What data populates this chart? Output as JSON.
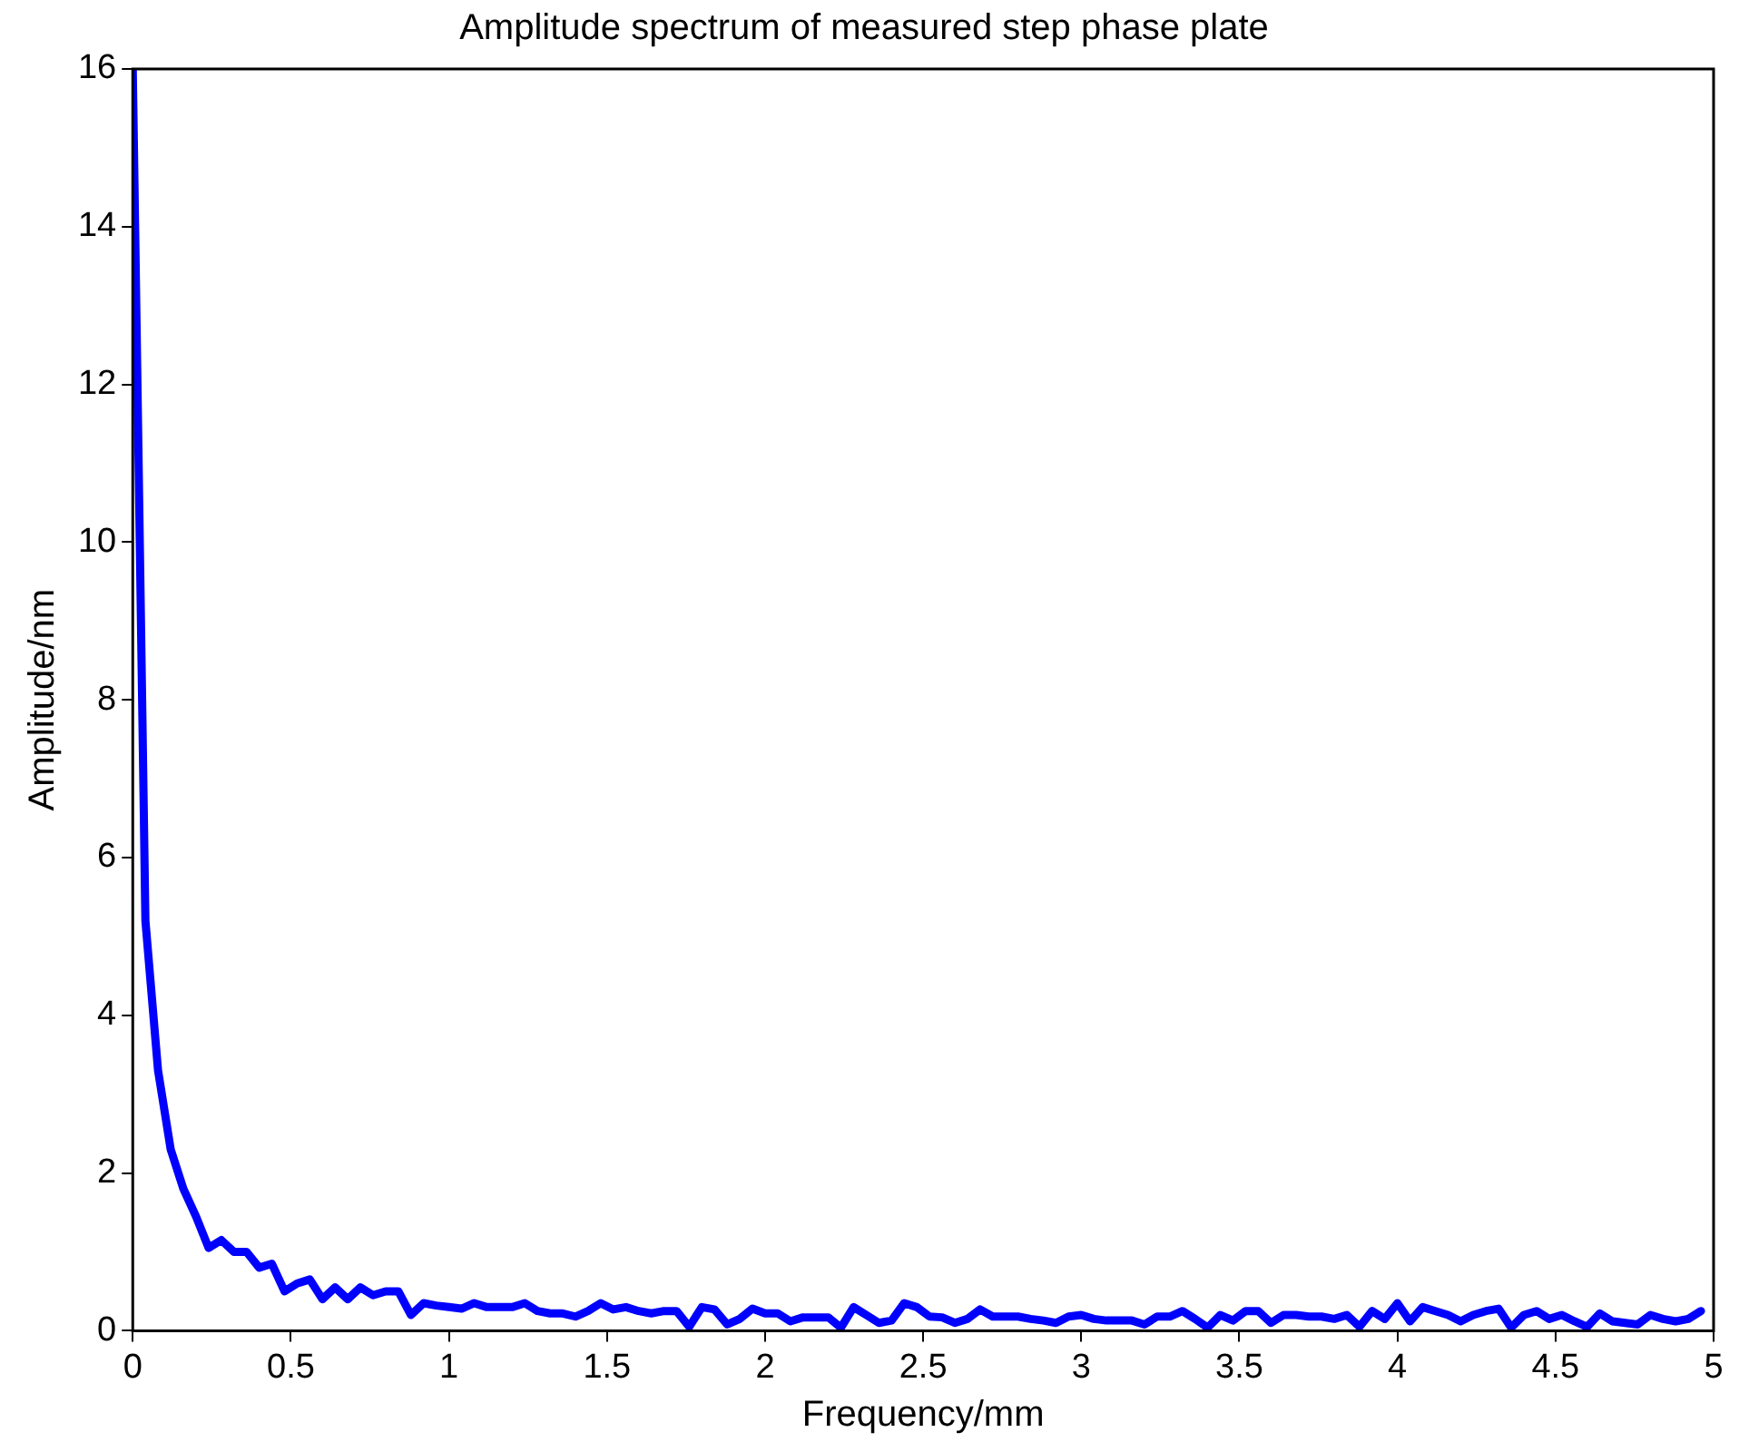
{
  "chart_data": {
    "type": "line",
    "title": "Amplitude spectrum of measured step phase plate",
    "xlabel": "Frequency/mm",
    "ylabel": "Amplitude/nm",
    "x": [
      0,
      0.04,
      0.08,
      0.12,
      0.16,
      0.2,
      0.24,
      0.28,
      0.32,
      0.36,
      0.4,
      0.44,
      0.48,
      0.52,
      0.56,
      0.6,
      0.64,
      0.68,
      0.72,
      0.76,
      0.8,
      0.84,
      0.88,
      0.92,
      0.96,
      1.0,
      1.04,
      1.08,
      1.12,
      1.16,
      1.2,
      1.24,
      1.28,
      1.32,
      1.36,
      1.4,
      1.44,
      1.48,
      1.52,
      1.56,
      1.6,
      1.64,
      1.68,
      1.72,
      1.76,
      1.8,
      1.84,
      1.88,
      1.92,
      1.96,
      2.0,
      2.04,
      2.08,
      2.12,
      2.16,
      2.2,
      2.24,
      2.28,
      2.32,
      2.36,
      2.4,
      2.44,
      2.48,
      2.52,
      2.56,
      2.6,
      2.64,
      2.68,
      2.72,
      2.76,
      2.8,
      2.84,
      2.88,
      2.92,
      2.96,
      3.0,
      3.04,
      3.08,
      3.12,
      3.16,
      3.2,
      3.24,
      3.28,
      3.32,
      3.36,
      3.4,
      3.44,
      3.48,
      3.52,
      3.56,
      3.6,
      3.64,
      3.68,
      3.72,
      3.76,
      3.8,
      3.84,
      3.88,
      3.92,
      3.96,
      4.0,
      4.04,
      4.08,
      4.12,
      4.16,
      4.2,
      4.24,
      4.28,
      4.32,
      4.36,
      4.4,
      4.44,
      4.48,
      4.52,
      4.56,
      4.6,
      4.64,
      4.68,
      4.72,
      4.76,
      4.8,
      4.84,
      4.88,
      4.92,
      4.96
    ],
    "series": [
      {
        "color": "#0000ff",
        "values": [
          16,
          5.2,
          3.3,
          2.3,
          1.8,
          1.45,
          1.05,
          1.15,
          1.0,
          1.0,
          0.8,
          0.85,
          0.5,
          0.6,
          0.65,
          0.4,
          0.55,
          0.4,
          0.55,
          0.45,
          0.5,
          0.5,
          0.2,
          0.35,
          0.32,
          0.3,
          0.28,
          0.35,
          0.3,
          0.3,
          0.3,
          0.35,
          0.25,
          0.22,
          0.22,
          0.18,
          0.25,
          0.35,
          0.27,
          0.3,
          0.25,
          0.22,
          0.25,
          0.25,
          0.05,
          0.3,
          0.27,
          0.08,
          0.15,
          0.28,
          0.22,
          0.22,
          0.12,
          0.17,
          0.17,
          0.17,
          0.04,
          0.3,
          0.2,
          0.1,
          0.13,
          0.35,
          0.3,
          0.18,
          0.17,
          0.1,
          0.15,
          0.27,
          0.18,
          0.18,
          0.18,
          0.15,
          0.13,
          0.1,
          0.18,
          0.2,
          0.15,
          0.13,
          0.13,
          0.13,
          0.08,
          0.18,
          0.18,
          0.25,
          0.15,
          0.04,
          0.2,
          0.13,
          0.25,
          0.25,
          0.1,
          0.2,
          0.2,
          0.18,
          0.18,
          0.15,
          0.2,
          0.05,
          0.25,
          0.15,
          0.35,
          0.12,
          0.3,
          0.25,
          0.2,
          0.12,
          0.2,
          0.25,
          0.28,
          0.04,
          0.2,
          0.25,
          0.15,
          0.2,
          0.12,
          0.05,
          0.22,
          0.12,
          0.1,
          0.08,
          0.2,
          0.15,
          0.12,
          0.15,
          0.25
        ]
      }
    ],
    "xlim": [
      0,
      5
    ],
    "xticks": [
      0,
      0.5,
      1,
      1.5,
      2,
      2.5,
      3,
      3.5,
      4,
      4.5,
      5
    ],
    "ylim": [
      0,
      16
    ],
    "yticks": [
      0,
      2,
      4,
      6,
      8,
      10,
      12,
      14,
      16
    ],
    "grid": false,
    "legend": false,
    "marker": "none",
    "line_style": "solid"
  }
}
